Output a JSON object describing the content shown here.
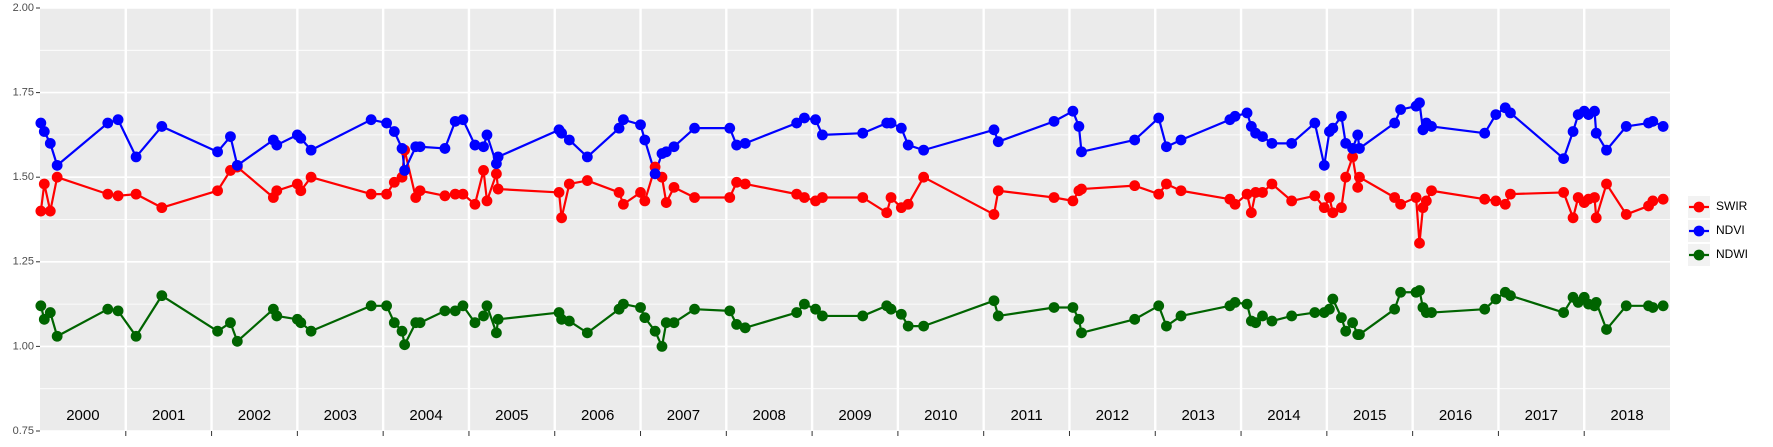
{
  "chart_data": {
    "type": "line",
    "xlim": [
      2000,
      2019
    ],
    "xticks": [
      2001,
      2002,
      2003,
      2004,
      2005,
      2006,
      2007,
      2008,
      2009,
      2010,
      2011,
      2012,
      2013,
      2014,
      2015,
      2016,
      2017,
      2018
    ],
    "year_labels": [
      2000,
      2001,
      2002,
      2003,
      2004,
      2005,
      2006,
      2007,
      2008,
      2009,
      2010,
      2011,
      2012,
      2013,
      2014,
      2015,
      2016,
      2017,
      2018
    ],
    "ylim": [
      0.75,
      2.0
    ],
    "yticks": [
      {
        "value": 0.75,
        "label": "0.75"
      },
      {
        "value": 1.0,
        "label": "1.00"
      },
      {
        "value": 1.25,
        "label": "1.25"
      },
      {
        "value": 1.5,
        "label": "1.50"
      },
      {
        "value": 1.75,
        "label": "1.75"
      },
      {
        "value": 2.0,
        "label": "2.00"
      }
    ],
    "grid": true,
    "legend": "right",
    "x": [
      2000.01,
      2000.05,
      2000.12,
      2000.2,
      2000.79,
      2000.91,
      2001.12,
      2001.42,
      2002.07,
      2002.22,
      2002.3,
      2002.72,
      2002.76,
      2003.0,
      2003.04,
      2003.16,
      2003.86,
      2004.04,
      2004.13,
      2004.22,
      2004.25,
      2004.38,
      2004.43,
      2004.72,
      2004.84,
      2004.93,
      2005.07,
      2005.17,
      2005.21,
      2005.32,
      2005.34,
      2006.05,
      2006.08,
      2006.17,
      2006.38,
      2006.75,
      2006.8,
      2007.0,
      2007.05,
      2007.17,
      2007.25,
      2007.3,
      2007.39,
      2007.63,
      2008.04,
      2008.12,
      2008.22,
      2008.82,
      2008.91,
      2009.04,
      2009.12,
      2009.59,
      2009.87,
      2009.92,
      2010.04,
      2010.12,
      2010.3,
      2011.12,
      2011.17,
      2011.82,
      2012.04,
      2012.11,
      2012.14,
      2012.76,
      2013.04,
      2013.13,
      2013.3,
      2013.87,
      2013.93,
      2014.07,
      2014.12,
      2014.17,
      2014.25,
      2014.36,
      2014.59,
      2014.86,
      2014.97,
      2015.03,
      2015.07,
      2015.17,
      2015.22,
      2015.3,
      2015.36,
      2015.38,
      2015.79,
      2015.86,
      2016.04,
      2016.08,
      2016.12,
      2016.16,
      2016.22,
      2016.84,
      2016.97,
      2017.08,
      2017.14,
      2017.76,
      2017.87,
      2017.93,
      2018.0,
      2018.05,
      2018.12,
      2018.14,
      2018.26,
      2018.49,
      2018.75,
      2018.8,
      2018.92
    ],
    "series": [
      {
        "name": "SWIR",
        "color": "#ff0000",
        "values": [
          1.4,
          1.48,
          1.4,
          1.5,
          1.45,
          1.445,
          1.45,
          1.41,
          1.46,
          1.52,
          1.53,
          1.44,
          1.46,
          1.48,
          1.46,
          1.5,
          1.45,
          1.45,
          1.485,
          1.5,
          1.58,
          1.44,
          1.46,
          1.445,
          1.45,
          1.45,
          1.42,
          1.52,
          1.43,
          1.51,
          1.465,
          1.455,
          1.38,
          1.48,
          1.49,
          1.455,
          1.42,
          1.455,
          1.43,
          1.53,
          1.5,
          1.425,
          1.47,
          1.44,
          1.44,
          1.485,
          1.48,
          1.45,
          1.44,
          1.43,
          1.44,
          1.44,
          1.395,
          1.44,
          1.41,
          1.42,
          1.5,
          1.39,
          1.46,
          1.44,
          1.43,
          1.46,
          1.465,
          1.475,
          1.45,
          1.48,
          1.46,
          1.435,
          1.42,
          1.45,
          1.395,
          1.455,
          1.455,
          1.48,
          1.43,
          1.445,
          1.41,
          1.44,
          1.395,
          1.41,
          1.5,
          1.56,
          1.47,
          1.5,
          1.44,
          1.42,
          1.44,
          1.305,
          1.41,
          1.43,
          1.46,
          1.435,
          1.43,
          1.42,
          1.45,
          1.455,
          1.38,
          1.44,
          1.425,
          1.435,
          1.44,
          1.38,
          1.48,
          1.39,
          1.415,
          1.43,
          1.435
        ]
      },
      {
        "name": "NDVI",
        "color": "#0000ff",
        "values": [
          1.66,
          1.635,
          1.6,
          1.535,
          1.66,
          1.67,
          1.56,
          1.65,
          1.575,
          1.62,
          1.535,
          1.61,
          1.595,
          1.625,
          1.615,
          1.58,
          1.67,
          1.66,
          1.635,
          1.585,
          1.52,
          1.59,
          1.59,
          1.585,
          1.665,
          1.67,
          1.595,
          1.59,
          1.625,
          1.54,
          1.56,
          1.64,
          1.63,
          1.61,
          1.56,
          1.645,
          1.67,
          1.655,
          1.61,
          1.51,
          1.57,
          1.575,
          1.59,
          1.645,
          1.645,
          1.595,
          1.6,
          1.66,
          1.675,
          1.67,
          1.625,
          1.63,
          1.66,
          1.66,
          1.645,
          1.595,
          1.58,
          1.64,
          1.605,
          1.665,
          1.695,
          1.65,
          1.575,
          1.61,
          1.675,
          1.59,
          1.61,
          1.67,
          1.68,
          1.69,
          1.65,
          1.63,
          1.62,
          1.6,
          1.6,
          1.66,
          1.535,
          1.635,
          1.645,
          1.68,
          1.6,
          1.585,
          1.625,
          1.585,
          1.66,
          1.7,
          1.71,
          1.72,
          1.64,
          1.66,
          1.65,
          1.63,
          1.685,
          1.705,
          1.69,
          1.555,
          1.635,
          1.685,
          1.695,
          1.685,
          1.695,
          1.63,
          1.58,
          1.65,
          1.66,
          1.665,
          1.65
        ]
      },
      {
        "name": "NDWI",
        "color": "#006400",
        "values": [
          1.12,
          1.08,
          1.1,
          1.03,
          1.11,
          1.105,
          1.03,
          1.15,
          1.045,
          1.07,
          1.015,
          1.11,
          1.09,
          1.08,
          1.07,
          1.045,
          1.12,
          1.12,
          1.07,
          1.045,
          1.005,
          1.07,
          1.07,
          1.105,
          1.105,
          1.12,
          1.07,
          1.09,
          1.12,
          1.04,
          1.08,
          1.1,
          1.08,
          1.075,
          1.04,
          1.11,
          1.125,
          1.115,
          1.085,
          1.045,
          1.0,
          1.07,
          1.07,
          1.11,
          1.105,
          1.065,
          1.055,
          1.1,
          1.125,
          1.11,
          1.09,
          1.09,
          1.12,
          1.11,
          1.095,
          1.06,
          1.06,
          1.135,
          1.09,
          1.115,
          1.115,
          1.08,
          1.04,
          1.08,
          1.12,
          1.06,
          1.09,
          1.12,
          1.13,
          1.125,
          1.075,
          1.07,
          1.09,
          1.075,
          1.09,
          1.1,
          1.1,
          1.11,
          1.14,
          1.085,
          1.045,
          1.07,
          1.035,
          1.035,
          1.11,
          1.16,
          1.16,
          1.165,
          1.115,
          1.1,
          1.1,
          1.11,
          1.14,
          1.16,
          1.15,
          1.1,
          1.145,
          1.13,
          1.145,
          1.125,
          1.12,
          1.13,
          1.05,
          1.12,
          1.12,
          1.115,
          1.12
        ]
      }
    ]
  }
}
